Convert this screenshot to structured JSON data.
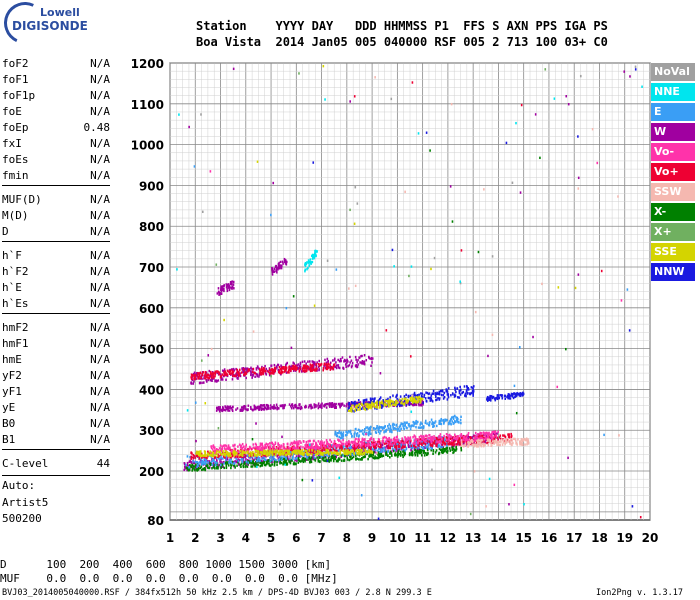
{
  "logo": {
    "line1": "Lowell",
    "line2": "DIGISONDE"
  },
  "header": {
    "labels": "Station    YYYY DAY   DDD HHMMSS P1  FFS S AXN PPS IGA PS",
    "values": "Boa Vista  2014 Jan05 005 040000 RSF 005 2 713 100 03+ C0"
  },
  "params_group1": [
    {
      "name": "foF2",
      "value": "N/A"
    },
    {
      "name": "foF1",
      "value": "N/A"
    },
    {
      "name": "foF1p",
      "value": "N/A"
    },
    {
      "name": "foE",
      "value": "N/A"
    },
    {
      "name": "foEp",
      "value": "0.48"
    },
    {
      "name": "fxI",
      "value": "N/A"
    },
    {
      "name": "foEs",
      "value": "N/A"
    },
    {
      "name": "fmin",
      "value": "N/A"
    }
  ],
  "params_group2": [
    {
      "name": "MUF(D)",
      "value": "N/A"
    },
    {
      "name": "M(D)",
      "value": "N/A"
    },
    {
      "name": "D",
      "value": "N/A"
    }
  ],
  "params_group3": [
    {
      "name": "h`F",
      "value": "N/A"
    },
    {
      "name": "h`F2",
      "value": "N/A"
    },
    {
      "name": "h`E",
      "value": "N/A"
    },
    {
      "name": "h`Es",
      "value": "N/A"
    }
  ],
  "params_group4": [
    {
      "name": "hmF2",
      "value": "N/A"
    },
    {
      "name": "hmF1",
      "value": "N/A"
    },
    {
      "name": "hmE",
      "value": "N/A"
    },
    {
      "name": "yF2",
      "value": "N/A"
    },
    {
      "name": "yF1",
      "value": "N/A"
    },
    {
      "name": "yE",
      "value": "N/A"
    },
    {
      "name": "B0",
      "value": "N/A"
    },
    {
      "name": "B1",
      "value": "N/A"
    }
  ],
  "clevel": {
    "name": "C-level",
    "value": "44"
  },
  "auto": {
    "line1": "Auto:",
    "line2": "Artist5",
    "line3": "500200"
  },
  "footer": {
    "d_row": "D      100  200  400  600  800 1000 1500 3000 [km]",
    "muf_row": "MUF    0.0  0.0  0.0  0.0  0.0  0.0  0.0  0.0 [MHz]",
    "file": "BVJ03_2014005040000.RSF / 384fx512h 50 kHz 2.5 km / DPS-4D BVJ03 003 / 2.8 N 299.3 E",
    "version": "Ion2Png v. 1.3.17"
  },
  "chart_data": {
    "type": "scatter",
    "title": "",
    "xlabel": "",
    "ylabel": "",
    "xlim": [
      1,
      20
    ],
    "ylim": [
      80,
      1200
    ],
    "x_ticks": [
      1,
      2,
      3,
      4,
      5,
      6,
      7,
      8,
      9,
      10,
      11,
      12,
      13,
      14,
      15,
      16,
      17,
      18,
      19,
      20
    ],
    "y_ticks": [
      200,
      300,
      400,
      500,
      600,
      700,
      800,
      900,
      1000,
      1100,
      1200
    ],
    "y_ticks_min": [
      80
    ],
    "grid": true,
    "legend_position": "right",
    "series": [
      {
        "name": "NoVal",
        "color": "#a0a0a0"
      },
      {
        "name": "NNE",
        "color": "#00e5ee"
      },
      {
        "name": "E",
        "color": "#3a9ef5"
      },
      {
        "name": "W",
        "color": "#a000a0"
      },
      {
        "name": "Vo-",
        "color": "#ff33aa"
      },
      {
        "name": "Vo+",
        "color": "#ee0033"
      },
      {
        "name": "SSW",
        "color": "#f5b8b0"
      },
      {
        "name": "X-",
        "color": "#008000"
      },
      {
        "name": "X+",
        "color": "#70b060"
      },
      {
        "name": "SSE",
        "color": "#d4d400"
      },
      {
        "name": "NNW",
        "color": "#1a1ae0"
      }
    ],
    "traces": [
      {
        "series": "W",
        "x0": 1.5,
        "x1": 14.0,
        "y0": 215,
        "y1": 285,
        "spread": 12
      },
      {
        "series": "X-",
        "x0": 1.6,
        "x1": 12.5,
        "y0": 210,
        "y1": 255,
        "spread": 8
      },
      {
        "series": "E",
        "x0": 1.6,
        "x1": 12.0,
        "y0": 225,
        "y1": 275,
        "spread": 14
      },
      {
        "series": "Vo+",
        "x0": 1.8,
        "x1": 14.5,
        "y0": 240,
        "y1": 285,
        "spread": 10
      },
      {
        "series": "Vo-",
        "x0": 2.5,
        "x1": 14.0,
        "y0": 255,
        "y1": 290,
        "spread": 10
      },
      {
        "series": "SSW",
        "x0": 12.5,
        "x1": 15.2,
        "y0": 270,
        "y1": 275,
        "spread": 8
      },
      {
        "series": "SSE",
        "x0": 2.0,
        "x1": 9.0,
        "y0": 245,
        "y1": 250,
        "spread": 6
      },
      {
        "series": "W",
        "x0": 1.8,
        "x1": 9.0,
        "y0": 430,
        "y1": 475,
        "spread": 14
      },
      {
        "series": "Vo+",
        "x0": 1.8,
        "x1": 7.5,
        "y0": 435,
        "y1": 460,
        "spread": 8
      },
      {
        "series": "W",
        "x0": 2.8,
        "x1": 11.0,
        "y0": 355,
        "y1": 370,
        "spread": 6
      },
      {
        "series": "NNW",
        "x0": 8.0,
        "x1": 13.0,
        "y0": 360,
        "y1": 400,
        "spread": 14
      },
      {
        "series": "SSE",
        "x0": 8.0,
        "x1": 11.0,
        "y0": 355,
        "y1": 380,
        "spread": 8
      },
      {
        "series": "NNW",
        "x0": 13.5,
        "x1": 15.0,
        "y0": 380,
        "y1": 390,
        "spread": 6
      },
      {
        "series": "E",
        "x0": 7.5,
        "x1": 12.5,
        "y0": 290,
        "y1": 330,
        "spread": 10
      },
      {
        "series": "W",
        "x0": 2.8,
        "x1": 3.5,
        "y0": 640,
        "y1": 660,
        "spread": 10
      },
      {
        "series": "W",
        "x0": 5.0,
        "x1": 5.6,
        "y0": 690,
        "y1": 720,
        "spread": 10
      },
      {
        "series": "NNE",
        "x0": 6.3,
        "x1": 6.8,
        "y0": 700,
        "y1": 740,
        "spread": 10
      }
    ]
  }
}
